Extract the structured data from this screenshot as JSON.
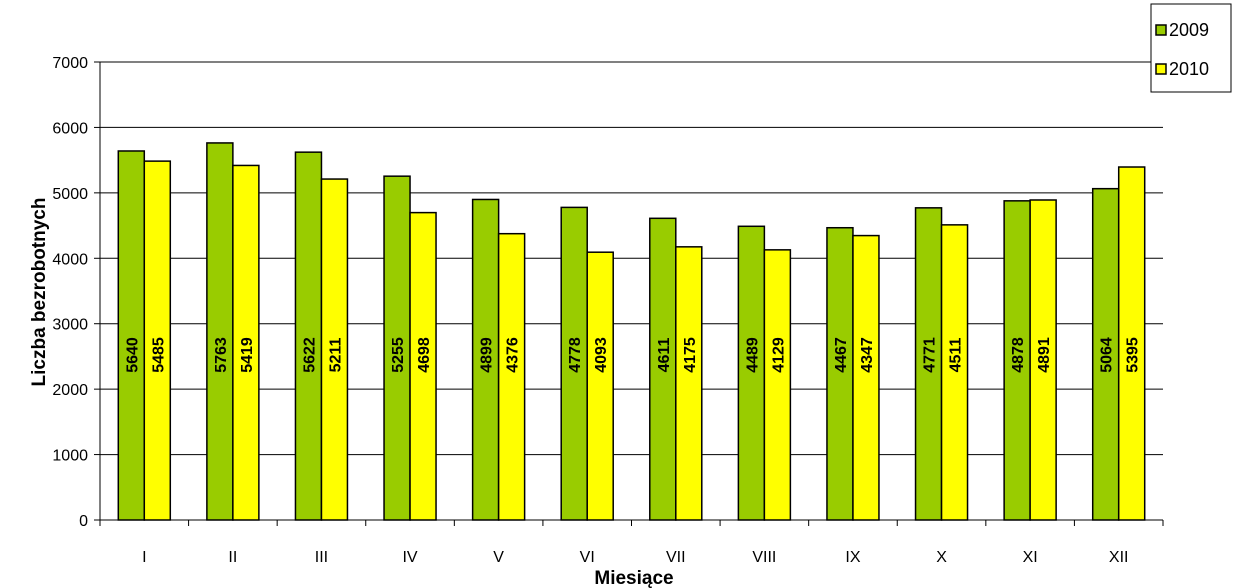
{
  "chart_data": {
    "type": "bar",
    "title": "",
    "xlabel": "Miesiące",
    "ylabel": "Liczba bezrobotnych",
    "ylim": [
      0,
      7000
    ],
    "yticks": [
      0,
      1000,
      2000,
      3000,
      4000,
      5000,
      6000,
      7000
    ],
    "grid": true,
    "legend_position": "top-right",
    "categories": [
      "I",
      "II",
      "III",
      "IV",
      "V",
      "VI",
      "VII",
      "VIII",
      "IX",
      "X",
      "XI",
      "XII"
    ],
    "series": [
      {
        "name": "2009",
        "color": "#99cc00",
        "values": [
          5640,
          5763,
          5622,
          5255,
          4899,
          4778,
          4611,
          4489,
          4467,
          4771,
          4878,
          5064
        ]
      },
      {
        "name": "2010",
        "color": "#ffff00",
        "values": [
          5485,
          5419,
          5211,
          4698,
          4376,
          4093,
          4175,
          4129,
          4347,
          4511,
          4891,
          5395
        ]
      }
    ]
  }
}
